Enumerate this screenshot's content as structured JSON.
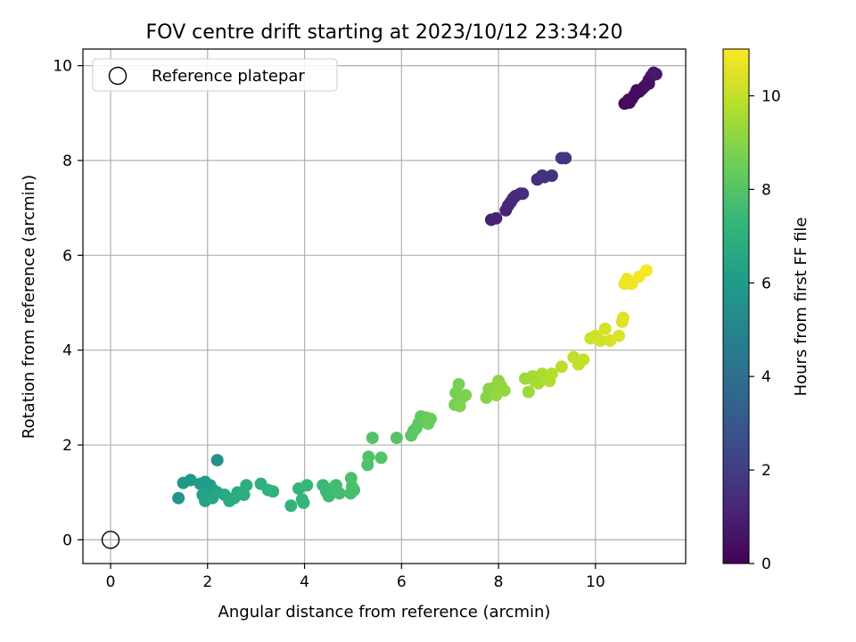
{
  "chart_data": {
    "type": "scatter",
    "title": "FOV centre drift starting at 2023/10/12 23:34:20",
    "xlabel": "Angular distance from reference (arcmin)",
    "ylabel": "Rotation from reference (arcmin)",
    "xlim": [
      -0.57,
      11.86
    ],
    "ylim": [
      -0.5,
      10.35
    ],
    "xticks": [
      0,
      2,
      4,
      6,
      8,
      10
    ],
    "yticks": [
      0,
      2,
      4,
      6,
      8,
      10
    ],
    "grid": true,
    "legend": {
      "placement": "top-left",
      "entries": [
        "Reference platepar"
      ]
    },
    "reference_point": {
      "x": 0,
      "y": 0
    },
    "colorbar": {
      "label": "Hours from first FF file",
      "range": [
        0,
        11
      ],
      "ticks": [
        0,
        2,
        4,
        6,
        8,
        10
      ],
      "colormap": "viridis"
    },
    "series": [
      {
        "points": [
          [
            10.6,
            9.2
          ],
          [
            10.7,
            9.22
          ],
          [
            10.75,
            9.3
          ],
          [
            10.8,
            9.38
          ],
          [
            10.9,
            9.45
          ],
          [
            10.95,
            9.5
          ],
          [
            11.0,
            9.55
          ],
          [
            11.05,
            9.6
          ],
          [
            11.1,
            9.7
          ],
          [
            11.15,
            9.78
          ],
          [
            11.2,
            9.85
          ],
          [
            11.25,
            9.82
          ],
          [
            11.1,
            9.62
          ],
          [
            10.85,
            9.48
          ],
          [
            10.68,
            9.28
          ],
          [
            7.85,
            6.75
          ],
          [
            7.95,
            6.78
          ],
          [
            8.15,
            6.95
          ],
          [
            8.2,
            7.05
          ],
          [
            8.25,
            7.12
          ],
          [
            8.3,
            7.2
          ],
          [
            8.35,
            7.25
          ],
          [
            8.45,
            7.3
          ],
          [
            8.5,
            7.3
          ],
          [
            8.8,
            7.6
          ],
          [
            8.9,
            7.68
          ],
          [
            8.95,
            7.65
          ],
          [
            9.1,
            7.68
          ],
          [
            9.3,
            8.05
          ],
          [
            9.38,
            8.05
          ],
          [
            2.2,
            1.68
          ],
          [
            1.4,
            0.88
          ],
          [
            1.5,
            1.2
          ],
          [
            1.65,
            1.26
          ],
          [
            1.85,
            1.18
          ],
          [
            1.95,
            1.22
          ],
          [
            2.05,
            1.15
          ],
          [
            2.12,
            1.05
          ],
          [
            1.9,
            0.95
          ],
          [
            1.95,
            0.82
          ],
          [
            2.1,
            0.88
          ],
          [
            2.2,
            1.0
          ],
          [
            2.35,
            0.95
          ],
          [
            2.45,
            0.82
          ],
          [
            2.55,
            0.88
          ],
          [
            2.62,
            1.0
          ],
          [
            2.75,
            0.95
          ],
          [
            2.8,
            1.15
          ],
          [
            3.1,
            1.18
          ],
          [
            3.25,
            1.05
          ],
          [
            3.35,
            1.02
          ],
          [
            3.72,
            0.72
          ],
          [
            3.88,
            1.08
          ],
          [
            3.95,
            0.85
          ],
          [
            3.98,
            0.78
          ],
          [
            4.05,
            1.15
          ],
          [
            4.38,
            1.15
          ],
          [
            4.45,
            1.02
          ],
          [
            4.5,
            0.92
          ],
          [
            4.6,
            1.1
          ],
          [
            4.65,
            1.15
          ],
          [
            4.72,
            0.98
          ],
          [
            4.95,
            0.98
          ],
          [
            4.98,
            1.12
          ],
          [
            5.02,
            1.05
          ],
          [
            4.96,
            1.3
          ],
          [
            5.3,
            1.58
          ],
          [
            5.32,
            1.75
          ],
          [
            5.4,
            2.15
          ],
          [
            5.58,
            1.73
          ],
          [
            5.9,
            2.15
          ],
          [
            6.2,
            2.2
          ],
          [
            6.25,
            2.3
          ],
          [
            6.3,
            2.35
          ],
          [
            6.35,
            2.45
          ],
          [
            6.4,
            2.6
          ],
          [
            6.5,
            2.58
          ],
          [
            6.6,
            2.55
          ],
          [
            6.55,
            2.45
          ],
          [
            7.1,
            2.85
          ],
          [
            7.12,
            3.1
          ],
          [
            7.18,
            3.28
          ],
          [
            7.25,
            3.0
          ],
          [
            7.32,
            3.05
          ],
          [
            7.2,
            2.82
          ],
          [
            7.75,
            3.0
          ],
          [
            7.8,
            3.18
          ],
          [
            7.9,
            3.2
          ],
          [
            8.0,
            3.35
          ],
          [
            8.05,
            3.25
          ],
          [
            8.12,
            3.15
          ],
          [
            7.95,
            3.05
          ],
          [
            8.55,
            3.4
          ],
          [
            8.62,
            3.12
          ],
          [
            8.7,
            3.45
          ],
          [
            8.75,
            3.35
          ],
          [
            8.82,
            3.3
          ],
          [
            8.9,
            3.5
          ],
          [
            8.95,
            3.4
          ],
          [
            9.05,
            3.35
          ],
          [
            9.1,
            3.5
          ],
          [
            9.3,
            3.65
          ],
          [
            9.55,
            3.85
          ],
          [
            9.65,
            3.7
          ],
          [
            9.75,
            3.8
          ],
          [
            9.9,
            4.25
          ],
          [
            10.0,
            4.3
          ],
          [
            10.1,
            4.2
          ],
          [
            10.2,
            4.45
          ],
          [
            10.3,
            4.2
          ],
          [
            10.48,
            4.3
          ],
          [
            10.55,
            4.6
          ],
          [
            10.57,
            4.68
          ],
          [
            10.6,
            5.4
          ],
          [
            10.65,
            5.5
          ],
          [
            10.75,
            5.4
          ],
          [
            10.9,
            5.55
          ],
          [
            11.05,
            5.68
          ]
        ],
        "hours": [
          0.2,
          0.25,
          0.3,
          0.35,
          0.4,
          0.45,
          0.5,
          0.55,
          0.6,
          0.65,
          0.7,
          0.75,
          0.5,
          0.4,
          0.3,
          1.0,
          1.05,
          1.1,
          1.15,
          1.2,
          1.25,
          1.3,
          1.35,
          1.4,
          1.45,
          1.5,
          1.55,
          1.6,
          1.65,
          1.7,
          5.6,
          5.7,
          5.8,
          5.9,
          6.0,
          6.05,
          6.1,
          6.2,
          6.3,
          6.4,
          6.45,
          6.5,
          6.6,
          6.7,
          6.75,
          6.8,
          6.9,
          6.95,
          7.0,
          7.05,
          7.1,
          7.15,
          7.2,
          7.25,
          7.3,
          7.35,
          7.4,
          7.45,
          7.5,
          7.55,
          7.6,
          7.65,
          7.7,
          7.72,
          7.75,
          7.8,
          7.85,
          7.9,
          7.95,
          8.0,
          8.05,
          8.1,
          8.15,
          8.2,
          8.25,
          8.3,
          8.35,
          8.4,
          8.45,
          8.6,
          8.65,
          8.7,
          8.75,
          8.8,
          8.85,
          8.95,
          9.0,
          9.05,
          9.1,
          9.15,
          9.2,
          9.25,
          9.35,
          9.4,
          9.45,
          9.5,
          9.55,
          9.6,
          9.65,
          9.7,
          9.75,
          9.85,
          9.95,
          10.0,
          10.05,
          10.15,
          10.2,
          10.25,
          10.3,
          10.35,
          10.4,
          10.45,
          10.5,
          10.7,
          10.75,
          10.8,
          10.85,
          10.9
        ]
      }
    ],
    "colors": {
      "grid": "#b0b0b0",
      "viridis": [
        "#440154",
        "#482878",
        "#3e4989",
        "#31688e",
        "#26828e",
        "#1f9e89",
        "#35b779",
        "#6ece58",
        "#b5de2b",
        "#fde725"
      ]
    }
  }
}
